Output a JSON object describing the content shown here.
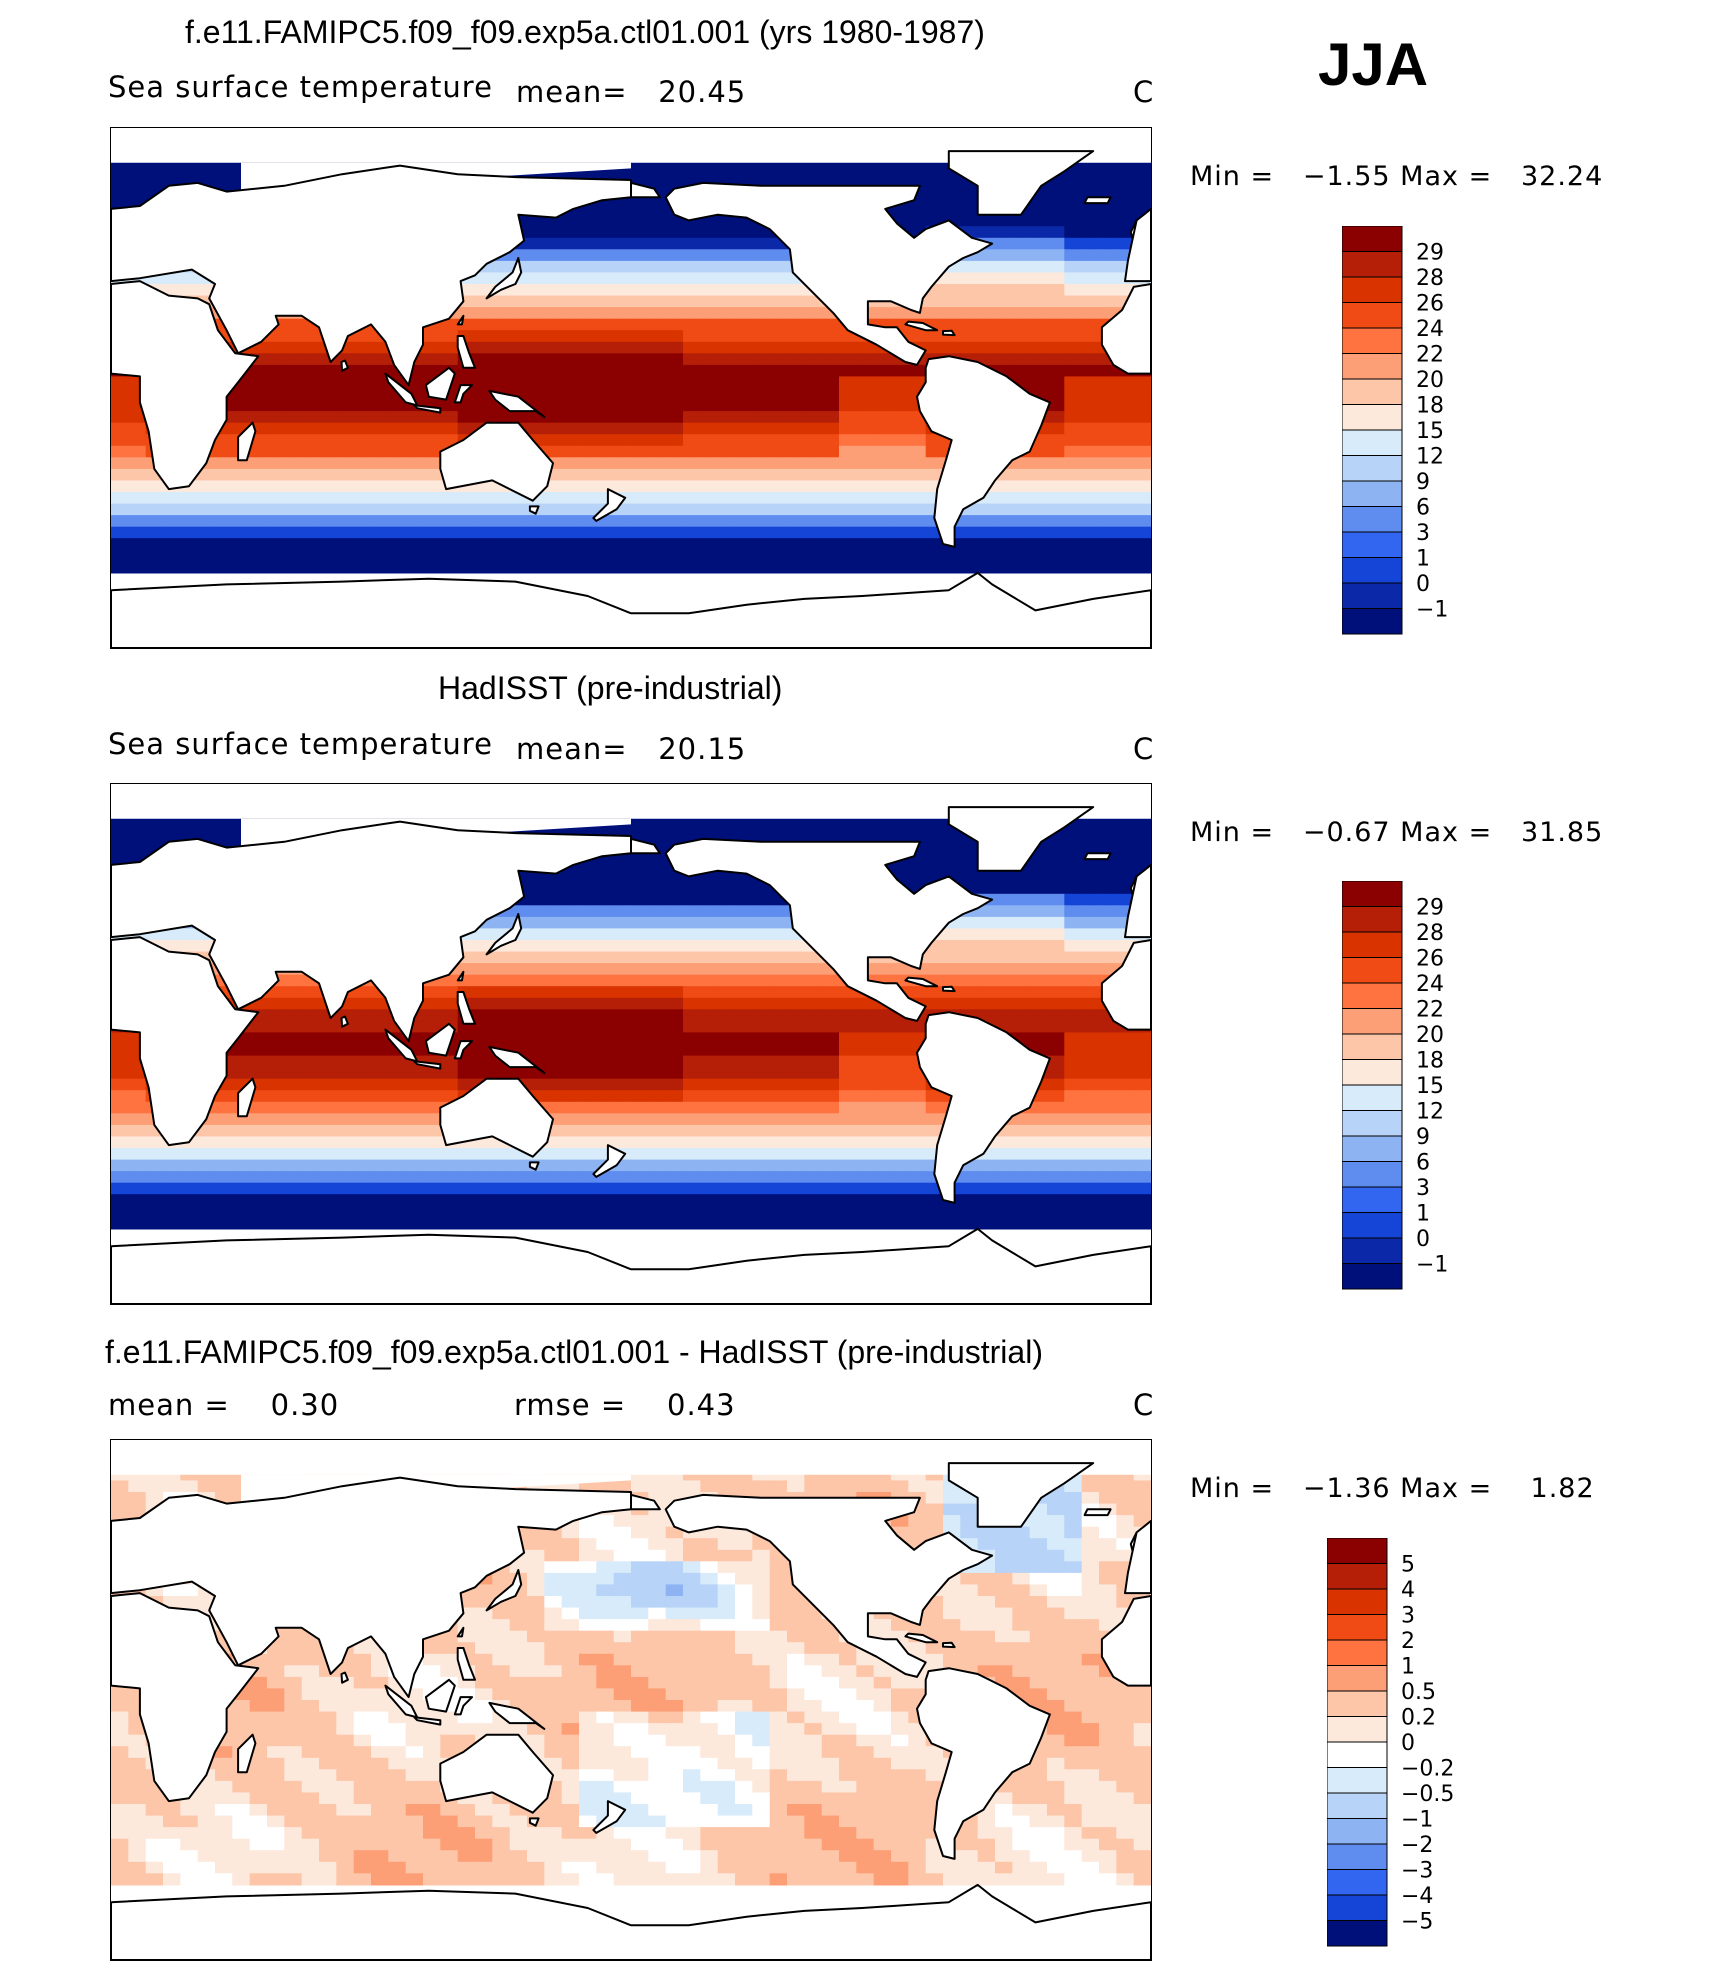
{
  "season_label": "JJA",
  "panels": [
    {
      "title": "f.e11.FAMIPC5.f09_f09.exp5a.ctl01.001 (yrs 1980-1987)",
      "left_label": "Sea surface temperature",
      "stat1": "mean=   20.45",
      "stat2": "",
      "unit": "C",
      "minmax": "Min =   −1.55 Max =   32.24"
    },
    {
      "title": "HadISST (pre-industrial)",
      "left_label": "Sea surface temperature",
      "stat1": "mean=   20.15",
      "stat2": "",
      "unit": "C",
      "minmax": "Min =   −0.67 Max =   31.85"
    },
    {
      "title": "f.e11.FAMIPC5.f09_f09.exp5a.ctl01.001 - HadISST (pre-industrial)",
      "left_label": "mean =    0.30",
      "stat1": "",
      "stat2": "rmse =    0.43",
      "unit": "C",
      "minmax": "Min =   −1.36 Max =    1.82"
    }
  ],
  "chart_data": [
    {
      "type": "heatmap",
      "title": "f.e11.FAMIPC5.f09_f09.exp5a.ctl01.001 (yrs 1980-1987)",
      "variable": "Sea surface temperature",
      "units": "C",
      "mean": 20.45,
      "min": -1.55,
      "max": 32.24,
      "colorbar_levels": [
        "29",
        "28",
        "26",
        "24",
        "22",
        "20",
        "18",
        "15",
        "12",
        "9",
        "6",
        "3",
        "1",
        "0",
        "−1"
      ],
      "colors": [
        "#8b0000",
        "#b51f08",
        "#d93300",
        "#f04b14",
        "#ff7340",
        "#fd9f76",
        "#fdc6a8",
        "#fde8dc",
        "#d8ebfa",
        "#b7d3f7",
        "#8db3f2",
        "#5f8cef",
        "#3366f0",
        "#1545d6",
        "#0a28a8",
        "#00107a"
      ]
    },
    {
      "type": "heatmap",
      "title": "HadISST (pre-industrial)",
      "variable": "Sea surface temperature",
      "units": "C",
      "mean": 20.15,
      "min": -0.67,
      "max": 31.85,
      "colorbar_levels": [
        "29",
        "28",
        "26",
        "24",
        "22",
        "20",
        "18",
        "15",
        "12",
        "9",
        "6",
        "3",
        "1",
        "0",
        "−1"
      ],
      "colors": [
        "#8b0000",
        "#b51f08",
        "#d93300",
        "#f04b14",
        "#ff7340",
        "#fd9f76",
        "#fdc6a8",
        "#fde8dc",
        "#d8ebfa",
        "#b7d3f7",
        "#8db3f2",
        "#5f8cef",
        "#3366f0",
        "#1545d6",
        "#0a28a8",
        "#00107a"
      ]
    },
    {
      "type": "heatmap",
      "title": "f.e11.FAMIPC5.f09_f09.exp5a.ctl01.001 - HadISST (pre-industrial)",
      "units": "C",
      "mean": 0.3,
      "rmse": 0.43,
      "min": -1.36,
      "max": 1.82,
      "colorbar_levels": [
        "5",
        "4",
        "3",
        "2",
        "1",
        "0.5",
        "0.2",
        "0",
        "−0.2",
        "−0.5",
        "−1",
        "−2",
        "−3",
        "−4",
        "−5"
      ],
      "colors": [
        "#8b0000",
        "#b51f08",
        "#d93300",
        "#f04b14",
        "#ff7340",
        "#fd9f76",
        "#fdc6a8",
        "#fde8dc",
        "#ffffff",
        "#d8ebfa",
        "#b7d3f7",
        "#8db3f2",
        "#5f8cef",
        "#3366f0",
        "#1545d6",
        "#00107a"
      ]
    }
  ]
}
